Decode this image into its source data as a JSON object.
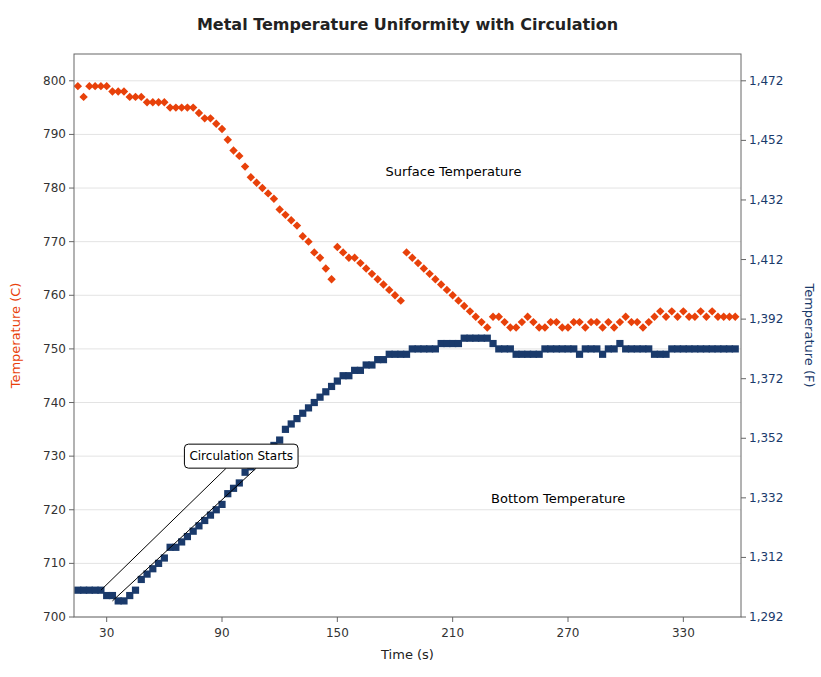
{
  "chart_data": {
    "type": "scatter",
    "title": "Metal Temperature Uniformity with Circulation",
    "x_label": "Time (s)",
    "y_label": "Temperature (C)",
    "y2_label": "Temperature (F)",
    "xlim": [
      13,
      360
    ],
    "xticks": [
      30,
      90,
      150,
      210,
      270,
      330
    ],
    "ylim": [
      700,
      805
    ],
    "yticks": [
      700,
      710,
      720,
      730,
      740,
      750,
      760,
      770,
      780,
      790,
      800
    ],
    "y2lim": [
      1292,
      1481
    ],
    "y2ticks": [
      {
        "value": 1292,
        "label": "1,292"
      },
      {
        "value": 1312,
        "label": "1,312"
      },
      {
        "value": 1332,
        "label": "1,332"
      },
      {
        "value": 1352,
        "label": "1,352"
      },
      {
        "value": 1372,
        "label": "1,372"
      },
      {
        "value": 1392,
        "label": "1,392"
      },
      {
        "value": 1412,
        "label": "1,412"
      },
      {
        "value": 1432,
        "label": "1,432"
      },
      {
        "value": 1452,
        "label": "1,452"
      },
      {
        "value": 1472,
        "label": "1,472"
      }
    ],
    "grid": true,
    "series": [
      {
        "color": "#e8410a",
        "marker": "diamond",
        "x": [
          15,
          18,
          21,
          24,
          27,
          30,
          33,
          36,
          39,
          42,
          45,
          48,
          51,
          54,
          57,
          60,
          63,
          66,
          69,
          72,
          75,
          78,
          81,
          84,
          87,
          90,
          93,
          96,
          99,
          102,
          105,
          108,
          111,
          114,
          117,
          120,
          123,
          126,
          129,
          132,
          135,
          138,
          141,
          144,
          147,
          150,
          153,
          156,
          159,
          162,
          165,
          168,
          171,
          174,
          177,
          180,
          183,
          186,
          189,
          192,
          195,
          198,
          201,
          204,
          207,
          210,
          213,
          216,
          219,
          222,
          225,
          228,
          231,
          234,
          237,
          240,
          243,
          246,
          249,
          252,
          255,
          258,
          261,
          264,
          267,
          270,
          273,
          276,
          279,
          282,
          285,
          288,
          291,
          294,
          297,
          300,
          303,
          306,
          309,
          312,
          315,
          318,
          321,
          324,
          327,
          330,
          333,
          336,
          339,
          342,
          345,
          348,
          351,
          354,
          357
        ],
        "values": [
          799,
          797,
          799,
          799,
          799,
          799,
          798,
          798,
          798,
          797,
          797,
          797,
          796,
          796,
          796,
          796,
          795,
          795,
          795,
          795,
          795,
          794,
          793,
          793,
          792,
          791,
          789,
          787,
          786,
          784,
          782,
          781,
          780,
          779,
          778,
          776,
          775,
          774,
          773,
          771,
          770,
          768,
          767,
          765,
          763,
          769,
          768,
          767,
          767,
          766,
          765,
          764,
          763,
          762,
          761,
          760,
          759,
          768,
          767,
          766,
          765,
          764,
          763,
          762,
          761,
          760,
          759,
          758,
          757,
          756,
          755,
          754,
          756,
          756,
          755,
          754,
          754,
          755,
          756,
          755,
          754,
          754,
          755,
          755,
          754,
          754,
          755,
          755,
          754,
          755,
          755,
          754,
          755,
          754,
          755,
          756,
          755,
          755,
          754,
          755,
          756,
          757,
          756,
          757,
          756,
          757,
          756,
          756,
          757,
          756,
          757,
          756,
          756,
          756,
          756
        ]
      },
      {
        "color": "#1a3a6b",
        "marker": "square",
        "x": [
          15,
          18,
          21,
          24,
          27,
          30,
          33,
          36,
          39,
          42,
          45,
          48,
          51,
          54,
          57,
          60,
          63,
          66,
          69,
          72,
          75,
          78,
          81,
          84,
          87,
          90,
          93,
          96,
          99,
          102,
          105,
          108,
          111,
          114,
          117,
          120,
          123,
          126,
          129,
          132,
          135,
          138,
          141,
          144,
          147,
          150,
          153,
          156,
          159,
          162,
          165,
          168,
          171,
          174,
          177,
          180,
          183,
          186,
          189,
          192,
          195,
          198,
          201,
          204,
          207,
          210,
          213,
          216,
          219,
          222,
          225,
          228,
          231,
          234,
          237,
          240,
          243,
          246,
          249,
          252,
          255,
          258,
          261,
          264,
          267,
          270,
          273,
          276,
          279,
          282,
          285,
          288,
          291,
          294,
          297,
          300,
          303,
          306,
          309,
          312,
          315,
          318,
          321,
          324,
          327,
          330,
          333,
          336,
          339,
          342,
          345,
          348,
          351,
          354,
          357
        ],
        "values": [
          705,
          705,
          705,
          705,
          705,
          704,
          704,
          703,
          703,
          704,
          705,
          707,
          708,
          709,
          710,
          711,
          713,
          713,
          714,
          715,
          716,
          717,
          718,
          719,
          720,
          721,
          723,
          724,
          725,
          727,
          728,
          729,
          730,
          731,
          732,
          733,
          735,
          736,
          737,
          738,
          739,
          740,
          741,
          742,
          743,
          744,
          745,
          745,
          746,
          746,
          747,
          747,
          748,
          748,
          749,
          749,
          749,
          749,
          750,
          750,
          750,
          750,
          750,
          751,
          751,
          751,
          751,
          752,
          752,
          752,
          752,
          752,
          751,
          750,
          750,
          750,
          749,
          749,
          749,
          749,
          749,
          750,
          750,
          750,
          750,
          750,
          750,
          749,
          750,
          750,
          750,
          749,
          750,
          750,
          751,
          750,
          750,
          750,
          750,
          750,
          749,
          749,
          749,
          750,
          750,
          750,
          750,
          750,
          750,
          750,
          750,
          750,
          750,
          750,
          750
        ]
      }
    ],
    "annotations": [
      {
        "text": "Circulation Starts",
        "x": 100,
        "y": 730,
        "targets": [
          [
            27,
            705
          ],
          [
            33,
            703
          ]
        ]
      },
      {
        "text": "Surface Temperature",
        "x": 175,
        "y": 783
      },
      {
        "text": "Bottom Temperature",
        "x": 230,
        "y": 722
      }
    ]
  }
}
